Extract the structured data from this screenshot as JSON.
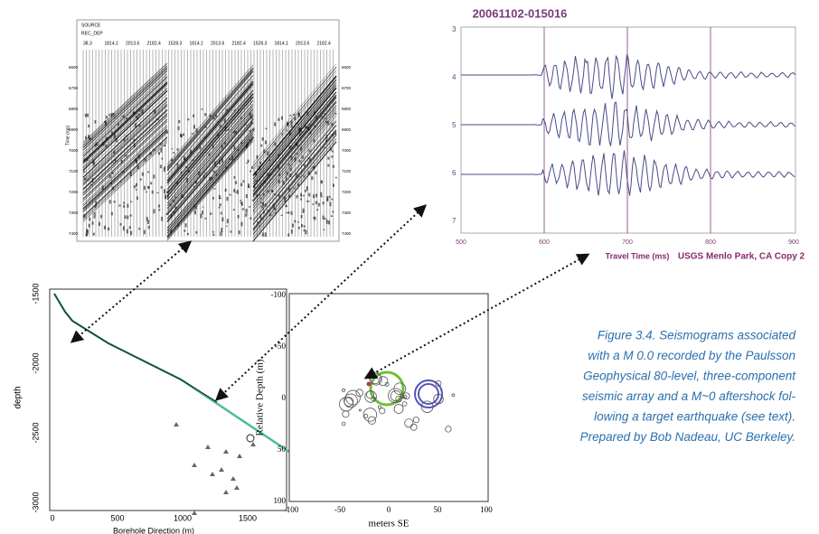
{
  "gather": {
    "header": [
      "SOURCE",
      "REC_DEP"
    ],
    "x_ticks": [
      "38.3",
      "1814.1",
      "2013.6",
      "2182.4",
      "1528.3",
      "1814.1",
      "2013.6",
      "2182.4",
      "1528.3",
      "1814.1",
      "2013.6",
      "2182.4"
    ],
    "y_ticks": [
      "6600",
      "6700",
      "6800",
      "6900",
      "7000",
      "7100",
      "7200",
      "7300",
      "7400"
    ],
    "y_label": "Time (ms)"
  },
  "seismogram": {
    "title": "20061102-015016",
    "y_ticks": [
      "3",
      "4",
      "5",
      "6",
      "7"
    ],
    "x_ticks": [
      "500",
      "600",
      "700",
      "800",
      "900"
    ],
    "x_label": "Travel Time (ms)",
    "credit": "USGS Menlo Park, CA Copy 2"
  },
  "borehole": {
    "y_ticks": [
      "-1500",
      "-2000",
      "-2500",
      "-3000"
    ],
    "x_ticks": [
      "0",
      "500",
      "1000",
      "1500"
    ],
    "y_label": "depth",
    "x_label": "Borehole Direction (m)"
  },
  "locations": {
    "y_ticks": [
      "-100",
      "-50",
      "0",
      "50",
      "100"
    ],
    "x_ticks": [
      "-100",
      "-50",
      "0",
      "50",
      "100"
    ],
    "y_label": "Relative Depth (m)",
    "x_label": "meters SE"
  },
  "caption": [
    "Figure 3.4. Seismograms associated",
    "with a M 0.0 recorded by the Paulsson",
    "Geophysical 80-level, three-component",
    "seismic array and a M~0 aftershock fol-",
    "lowing a target earthquake (see text).",
    "Prepared by Bob Nadeau, UC Berkeley."
  ]
}
